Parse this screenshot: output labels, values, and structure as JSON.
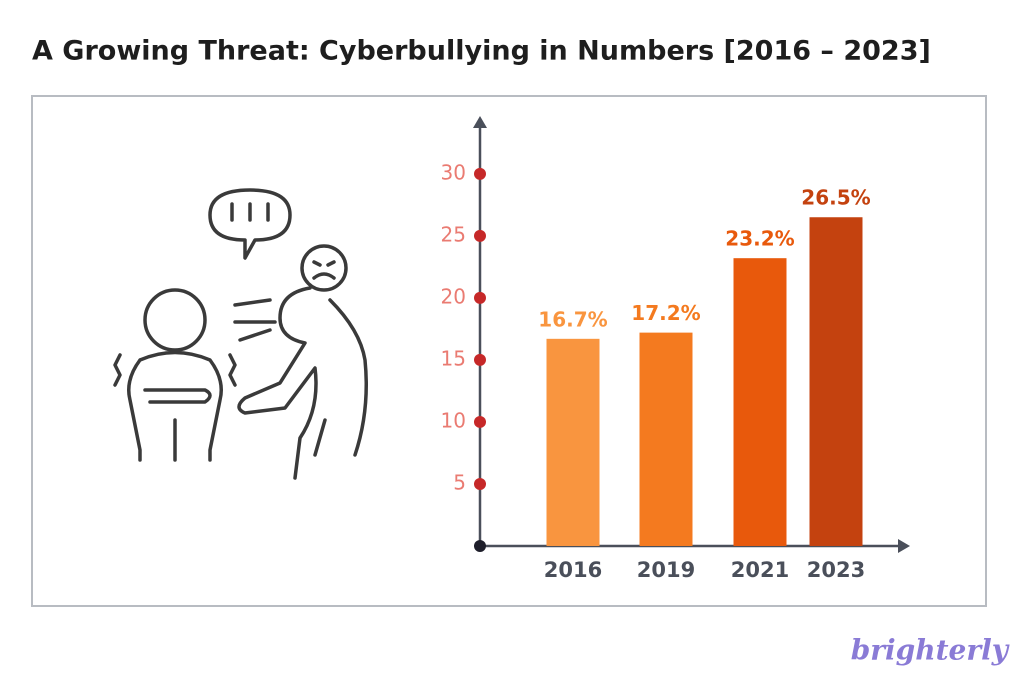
{
  "chart_data": {
    "type": "bar",
    "title": "A Growing Threat: Cyberbullying in Numbers [2016 – 2023]",
    "categories": [
      "2016",
      "2019",
      "2021",
      "2023"
    ],
    "values": [
      16.7,
      17.2,
      23.2,
      26.5
    ],
    "value_labels": [
      "16.7%",
      "17.2%",
      "23.2%",
      "26.5%"
    ],
    "colors": [
      "#f9953f",
      "#f47a1f",
      "#e8590c",
      "#c4420f"
    ],
    "ylim": [
      0,
      34.5
    ],
    "yticks": [
      5,
      10,
      15,
      20,
      25,
      30
    ]
  },
  "logo": "brighterly"
}
